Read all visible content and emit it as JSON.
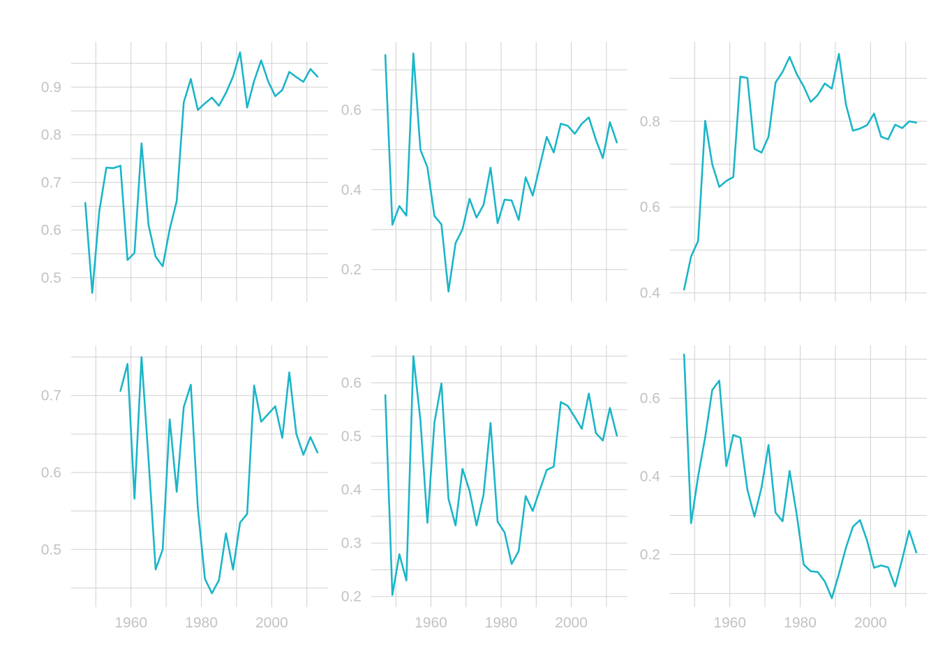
{
  "colors": {
    "series": "#1ab5c8",
    "grid": "#cfcfcf",
    "tick": "#c2c2c2"
  },
  "chart_data": [
    {
      "type": "line",
      "xlim": [
        1943,
        2016
      ],
      "ylim": [
        0.45,
        0.995
      ],
      "x_ticks": [
        1960,
        1980,
        2000
      ],
      "y_ticks": [
        0.5,
        0.6,
        0.7,
        0.8,
        0.9
      ],
      "x_tick_labels_visible": false,
      "grid": true,
      "x": [
        1947,
        1949,
        1951,
        1953,
        1955,
        1957,
        1959,
        1961,
        1963,
        1965,
        1967,
        1969,
        1971,
        1973,
        1975,
        1977,
        1979,
        1981,
        1983,
        1985,
        1987,
        1989,
        1991,
        1993,
        1995,
        1997,
        1999,
        2001,
        2003,
        2005,
        2007,
        2009,
        2011,
        2013
      ],
      "y": [
        0.657,
        0.468,
        0.64,
        0.731,
        0.73,
        0.735,
        0.537,
        0.552,
        0.782,
        0.61,
        0.544,
        0.524,
        0.602,
        0.661,
        0.868,
        0.917,
        0.852,
        0.866,
        0.878,
        0.861,
        0.888,
        0.922,
        0.973,
        0.857,
        0.913,
        0.956,
        0.912,
        0.881,
        0.894,
        0.932,
        0.921,
        0.911,
        0.938,
        0.922
      ]
    },
    {
      "type": "line",
      "xlim": [
        1943,
        2016
      ],
      "ylim": [
        0.12,
        0.77
      ],
      "x_ticks": [
        1960,
        1980,
        2000
      ],
      "y_ticks": [
        0.2,
        0.4,
        0.6
      ],
      "x_tick_labels_visible": false,
      "grid": true,
      "x": [
        1947,
        1949,
        1951,
        1953,
        1955,
        1957,
        1959,
        1961,
        1963,
        1965,
        1967,
        1969,
        1971,
        1973,
        1975,
        1977,
        1979,
        1981,
        1983,
        1985,
        1987,
        1989,
        1991,
        1993,
        1995,
        1997,
        1999,
        2001,
        2003,
        2005,
        2007,
        2009,
        2011,
        2013
      ],
      "y": [
        0.737,
        0.312,
        0.359,
        0.335,
        0.741,
        0.5,
        0.456,
        0.334,
        0.313,
        0.145,
        0.266,
        0.301,
        0.377,
        0.33,
        0.362,
        0.455,
        0.316,
        0.375,
        0.373,
        0.324,
        0.431,
        0.385,
        0.458,
        0.532,
        0.493,
        0.565,
        0.56,
        0.54,
        0.565,
        0.581,
        0.525,
        0.479,
        0.569,
        0.518
      ]
    },
    {
      "type": "line",
      "xlim": [
        1943,
        2016
      ],
      "ylim": [
        0.38,
        0.985
      ],
      "x_ticks": [
        1960,
        1980,
        2000
      ],
      "y_ticks": [
        0.4,
        0.6,
        0.8
      ],
      "x_tick_labels_visible": false,
      "grid": true,
      "x": [
        1947,
        1949,
        1951,
        1953,
        1955,
        1957,
        1959,
        1961,
        1963,
        1965,
        1967,
        1969,
        1971,
        1973,
        1975,
        1977,
        1979,
        1981,
        1983,
        1985,
        1987,
        1989,
        1991,
        1993,
        1995,
        1997,
        1999,
        2001,
        2003,
        2005,
        2007,
        2009,
        2011,
        2013
      ],
      "y": [
        0.408,
        0.485,
        0.521,
        0.801,
        0.7,
        0.647,
        0.661,
        0.67,
        0.904,
        0.901,
        0.736,
        0.727,
        0.764,
        0.89,
        0.915,
        0.95,
        0.91,
        0.881,
        0.845,
        0.861,
        0.888,
        0.876,
        0.957,
        0.839,
        0.778,
        0.783,
        0.791,
        0.818,
        0.764,
        0.758,
        0.792,
        0.784,
        0.8,
        0.797
      ]
    },
    {
      "type": "line",
      "xlim": [
        1943,
        2016
      ],
      "ylim": [
        0.425,
        0.765
      ],
      "x_ticks": [
        1960,
        1980,
        2000
      ],
      "y_ticks": [
        0.5,
        0.6,
        0.7
      ],
      "x_tick_labels_visible": true,
      "grid": true,
      "x": [
        1957,
        1959,
        1961,
        1963,
        1965,
        1967,
        1969,
        1971,
        1973,
        1975,
        1977,
        1979,
        1981,
        1983,
        1985,
        1987,
        1989,
        1991,
        1993,
        1995,
        1997,
        1999,
        2001,
        2003,
        2005,
        2007,
        2009,
        2011,
        2013
      ],
      "y": [
        0.706,
        0.741,
        0.566,
        0.75,
        0.616,
        0.474,
        0.5,
        0.669,
        0.575,
        0.685,
        0.714,
        0.553,
        0.462,
        0.443,
        0.46,
        0.521,
        0.474,
        0.535,
        0.546,
        0.713,
        0.666,
        0.676,
        0.686,
        0.645,
        0.73,
        0.65,
        0.623,
        0.646,
        0.626
      ]
    },
    {
      "type": "line",
      "xlim": [
        1943,
        2016
      ],
      "ylim": [
        0.18,
        0.67
      ],
      "x_ticks": [
        1960,
        1980,
        2000
      ],
      "y_ticks": [
        0.2,
        0.3,
        0.4,
        0.5,
        0.6
      ],
      "x_tick_labels_visible": true,
      "grid": true,
      "x": [
        1947,
        1949,
        1951,
        1953,
        1955,
        1957,
        1959,
        1961,
        1963,
        1965,
        1967,
        1969,
        1971,
        1973,
        1975,
        1977,
        1979,
        1981,
        1983,
        1985,
        1987,
        1989,
        1991,
        1993,
        1995,
        1997,
        1999,
        2001,
        2003,
        2005,
        2007,
        2009,
        2011,
        2013
      ],
      "y": [
        0.577,
        0.203,
        0.279,
        0.23,
        0.65,
        0.53,
        0.338,
        0.526,
        0.599,
        0.383,
        0.333,
        0.439,
        0.398,
        0.333,
        0.391,
        0.525,
        0.34,
        0.32,
        0.261,
        0.285,
        0.388,
        0.36,
        0.399,
        0.437,
        0.443,
        0.564,
        0.557,
        0.536,
        0.514,
        0.58,
        0.506,
        0.492,
        0.553,
        0.501
      ]
    },
    {
      "type": "line",
      "xlim": [
        1943,
        2016
      ],
      "ylim": [
        0.065,
        0.735
      ],
      "x_ticks": [
        1960,
        1980,
        2000
      ],
      "y_ticks": [
        0.2,
        0.4,
        0.6
      ],
      "x_tick_labels_visible": true,
      "grid": true,
      "x": [
        1947,
        1949,
        1951,
        1953,
        1955,
        1957,
        1959,
        1961,
        1963,
        1965,
        1967,
        1969,
        1971,
        1973,
        1975,
        1977,
        1979,
        1981,
        1983,
        1985,
        1987,
        1989,
        1991,
        1993,
        1995,
        1997,
        1999,
        2001,
        2003,
        2005,
        2007,
        2009,
        2011,
        2013
      ],
      "y": [
        0.712,
        0.28,
        0.4,
        0.5,
        0.621,
        0.645,
        0.426,
        0.506,
        0.499,
        0.366,
        0.297,
        0.371,
        0.48,
        0.307,
        0.285,
        0.414,
        0.303,
        0.174,
        0.157,
        0.155,
        0.131,
        0.088,
        0.15,
        0.217,
        0.271,
        0.288,
        0.236,
        0.166,
        0.172,
        0.167,
        0.118,
        0.188,
        0.261,
        0.205
      ]
    }
  ]
}
